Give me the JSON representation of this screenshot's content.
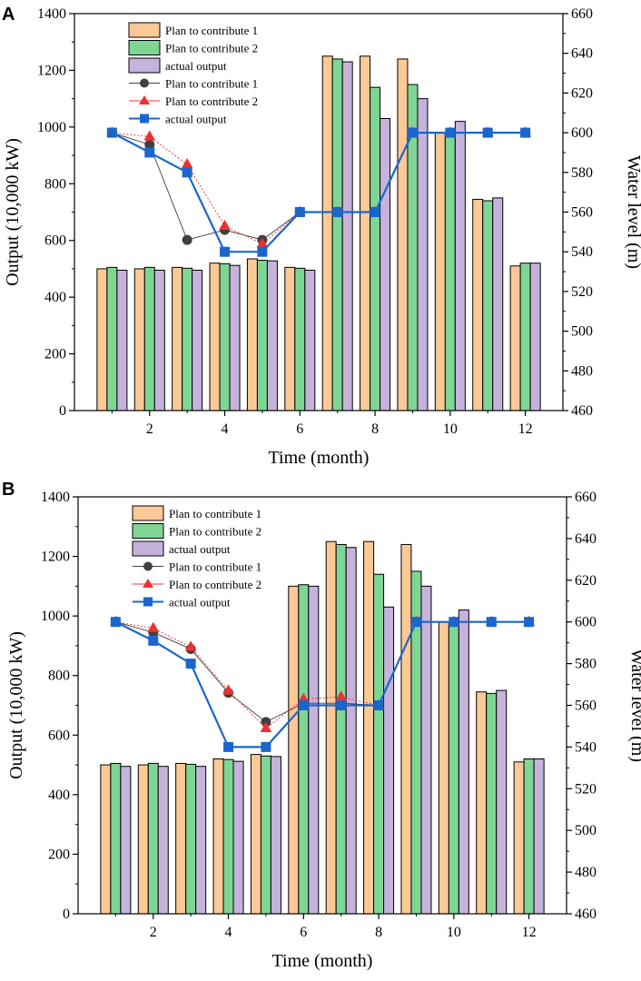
{
  "chart_data": [
    {
      "panel": "A",
      "type": "bar",
      "xlabel": "Time (month)",
      "ylabel": "Output (10,000 kW)",
      "y2label": "Water level (m)",
      "x": [
        1,
        2,
        3,
        4,
        5,
        6,
        7,
        8,
        9,
        10,
        11,
        12
      ],
      "xticks": [
        2,
        4,
        6,
        8,
        10,
        12
      ],
      "xlim": [
        0.0,
        13.0
      ],
      "ylim": [
        0,
        1400
      ],
      "y2lim": [
        460,
        660
      ],
      "yticks": [
        0,
        200,
        400,
        600,
        800,
        1000,
        1200,
        1400
      ],
      "y2ticks": [
        460,
        480,
        500,
        520,
        540,
        560,
        580,
        600,
        620,
        640,
        660
      ],
      "legend_position": "top-left",
      "series": [
        {
          "name": "Plan to contribute 1",
          "kind": "bar",
          "axis": "left",
          "color": "#FCC996",
          "values": [
            500,
            500,
            505,
            520,
            535,
            505,
            1250,
            1250,
            1240,
            980,
            745,
            510
          ]
        },
        {
          "name": "Plan to contribute 2",
          "kind": "bar",
          "axis": "left",
          "color": "#7FD694",
          "values": [
            505,
            505,
            502,
            518,
            530,
            502,
            1240,
            1140,
            1150,
            980,
            740,
            520
          ]
        },
        {
          "name": "actual output",
          "kind": "bar",
          "axis": "left",
          "color": "#C6B3DC",
          "values": [
            495,
            495,
            495,
            512,
            528,
            495,
            1230,
            1030,
            1100,
            1020,
            750,
            520
          ]
        },
        {
          "name": "Plan to contribute 1",
          "kind": "line",
          "axis": "right",
          "color": "#404040",
          "marker": "circle",
          "values": [
            600,
            594,
            546,
            551,
            546,
            560,
            560,
            560,
            600,
            600,
            600,
            600
          ]
        },
        {
          "name": "Plan to contribute 2",
          "kind": "line",
          "axis": "right",
          "color": "#F03030",
          "marker": "triangle",
          "values": [
            600,
            598,
            584,
            553,
            544,
            560,
            560,
            560,
            600,
            600,
            600,
            600
          ]
        },
        {
          "name": "actual output",
          "kind": "line",
          "axis": "right",
          "color": "#1A66CC",
          "marker": "square",
          "values": [
            600,
            590,
            580,
            540,
            540,
            560,
            560,
            560,
            600,
            600,
            600,
            600
          ]
        }
      ]
    },
    {
      "panel": "B",
      "type": "bar",
      "xlabel": "Time (month)",
      "ylabel": "Output (10,000 kW)",
      "y2label": "Water level (m)",
      "x": [
        1,
        2,
        3,
        4,
        5,
        6,
        7,
        8,
        9,
        10,
        11,
        12
      ],
      "xticks": [
        2,
        4,
        6,
        8,
        10,
        12
      ],
      "xlim": [
        0.0,
        13.0
      ],
      "ylim": [
        0,
        1400
      ],
      "y2lim": [
        460,
        660
      ],
      "yticks": [
        0,
        200,
        400,
        600,
        800,
        1000,
        1200,
        1400
      ],
      "y2ticks": [
        460,
        480,
        500,
        520,
        540,
        560,
        580,
        600,
        620,
        640,
        660
      ],
      "legend_position": "top-left",
      "series": [
        {
          "name": "Plan to contribute 1",
          "kind": "bar",
          "axis": "left",
          "color": "#FCC996",
          "values": [
            500,
            500,
            505,
            520,
            535,
            1100,
            1250,
            1250,
            1240,
            980,
            745,
            510
          ]
        },
        {
          "name": "Plan to contribute 2",
          "kind": "bar",
          "axis": "left",
          "color": "#7FD694",
          "values": [
            505,
            505,
            502,
            518,
            530,
            1105,
            1240,
            1140,
            1150,
            980,
            740,
            520
          ]
        },
        {
          "name": "actual output",
          "kind": "bar",
          "axis": "left",
          "color": "#C6B3DC",
          "values": [
            495,
            495,
            495,
            512,
            528,
            1100,
            1230,
            1030,
            1100,
            1020,
            750,
            520
          ]
        },
        {
          "name": "Plan to contribute 1",
          "kind": "line",
          "axis": "right",
          "color": "#404040",
          "marker": "circle",
          "values": [
            600,
            595,
            587,
            566,
            552,
            561,
            561,
            560,
            600,
            600,
            600,
            600
          ]
        },
        {
          "name": "Plan to contribute 2",
          "kind": "line",
          "axis": "right",
          "color": "#F03030",
          "marker": "triangle",
          "values": [
            600,
            597,
            588,
            567,
            549,
            563,
            564,
            560,
            600,
            600,
            600,
            600
          ]
        },
        {
          "name": "actual output",
          "kind": "line",
          "axis": "right",
          "color": "#1A66CC",
          "marker": "square",
          "values": [
            600,
            591,
            580,
            540,
            540,
            560,
            560,
            560,
            600,
            600,
            600,
            600
          ]
        }
      ]
    }
  ]
}
